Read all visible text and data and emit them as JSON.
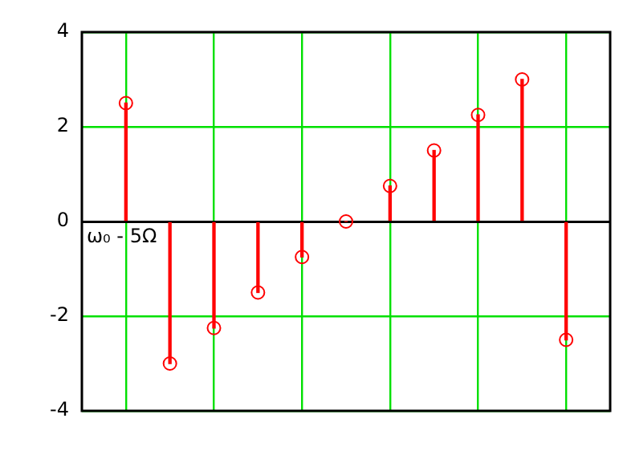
{
  "chart_data": {
    "type": "lollipop",
    "categories": [
      null,
      null,
      null,
      null,
      null,
      null,
      null,
      null,
      null,
      null,
      null
    ],
    "values": [
      2.5,
      -3,
      -2.25,
      -1.5,
      -0.75,
      0,
      0.75,
      1.5,
      2.25,
      3,
      -2.5
    ],
    "color": "#ff0000",
    "ylim": [
      -4,
      4
    ],
    "yticks": [
      -4,
      -2,
      0,
      2,
      4
    ],
    "tick_labels": "y",
    "grid": true,
    "marker": "circle",
    "annotations": [
      "ω₀ - 5Ω"
    ]
  }
}
